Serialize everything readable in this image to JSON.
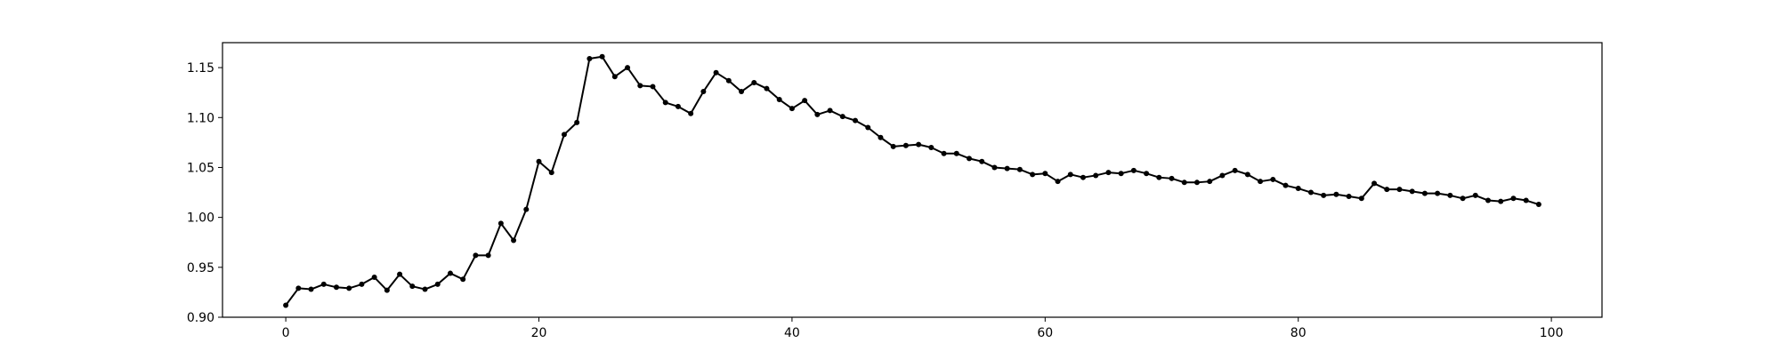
{
  "chart_data": {
    "type": "line",
    "title": "",
    "xlabel": "",
    "ylabel": "",
    "xlim": [
      -5,
      104
    ],
    "ylim": [
      0.9,
      1.175
    ],
    "grid": false,
    "line_color": "#000000",
    "marker": "circle",
    "x_ticks": [
      0,
      20,
      40,
      60,
      80,
      100
    ],
    "x_tick_labels": [
      "0",
      "20",
      "40",
      "60",
      "80",
      "100"
    ],
    "y_ticks": [
      0.9,
      0.95,
      1.0,
      1.05,
      1.1,
      1.15
    ],
    "y_tick_labels": [
      "0.90",
      "0.95",
      "1.00",
      "1.05",
      "1.10",
      "1.15"
    ],
    "series": [
      {
        "x": [
          0,
          1,
          2,
          3,
          4,
          5,
          6,
          7,
          8,
          9,
          10,
          11,
          12,
          13,
          14,
          15,
          16,
          17,
          18,
          19,
          20,
          21,
          22,
          23,
          24,
          25,
          26,
          27,
          28,
          29,
          30,
          31,
          32,
          33,
          34,
          35,
          36,
          37,
          38,
          39,
          40,
          41,
          42,
          43,
          44,
          45,
          46,
          47,
          48,
          49,
          50,
          51,
          52,
          53,
          54,
          55,
          56,
          57,
          58,
          59,
          60,
          61,
          62,
          63,
          64,
          65,
          66,
          67,
          68,
          69,
          70,
          71,
          72,
          73,
          74,
          75,
          76,
          77,
          78,
          79,
          80,
          81,
          82,
          83,
          84,
          85,
          86,
          87,
          88,
          89,
          90,
          91,
          92,
          93,
          94,
          95,
          96,
          97,
          98,
          99
        ],
        "values": [
          0.912,
          0.929,
          0.928,
          0.933,
          0.93,
          0.929,
          0.933,
          0.94,
          0.927,
          0.943,
          0.931,
          0.928,
          0.933,
          0.944,
          0.938,
          0.962,
          0.962,
          0.994,
          0.977,
          1.008,
          1.056,
          1.045,
          1.083,
          1.095,
          1.159,
          1.161,
          1.141,
          1.15,
          1.132,
          1.131,
          1.115,
          1.111,
          1.104,
          1.126,
          1.145,
          1.137,
          1.126,
          1.135,
          1.129,
          1.118,
          1.109,
          1.117,
          1.103,
          1.107,
          1.101,
          1.097,
          1.09,
          1.08,
          1.071,
          1.072,
          1.073,
          1.07,
          1.064,
          1.064,
          1.059,
          1.056,
          1.05,
          1.049,
          1.048,
          1.043,
          1.044,
          1.036,
          1.043,
          1.04,
          1.042,
          1.045,
          1.044,
          1.047,
          1.044,
          1.04,
          1.039,
          1.035,
          1.035,
          1.036,
          1.042,
          1.047,
          1.043,
          1.036,
          1.038,
          1.032,
          1.029,
          1.025,
          1.022,
          1.023,
          1.021,
          1.019,
          1.034,
          1.028,
          1.028,
          1.026,
          1.024,
          1.024,
          1.022,
          1.019,
          1.022,
          1.017,
          1.016,
          1.019,
          1.017,
          1.013
        ]
      }
    ]
  }
}
